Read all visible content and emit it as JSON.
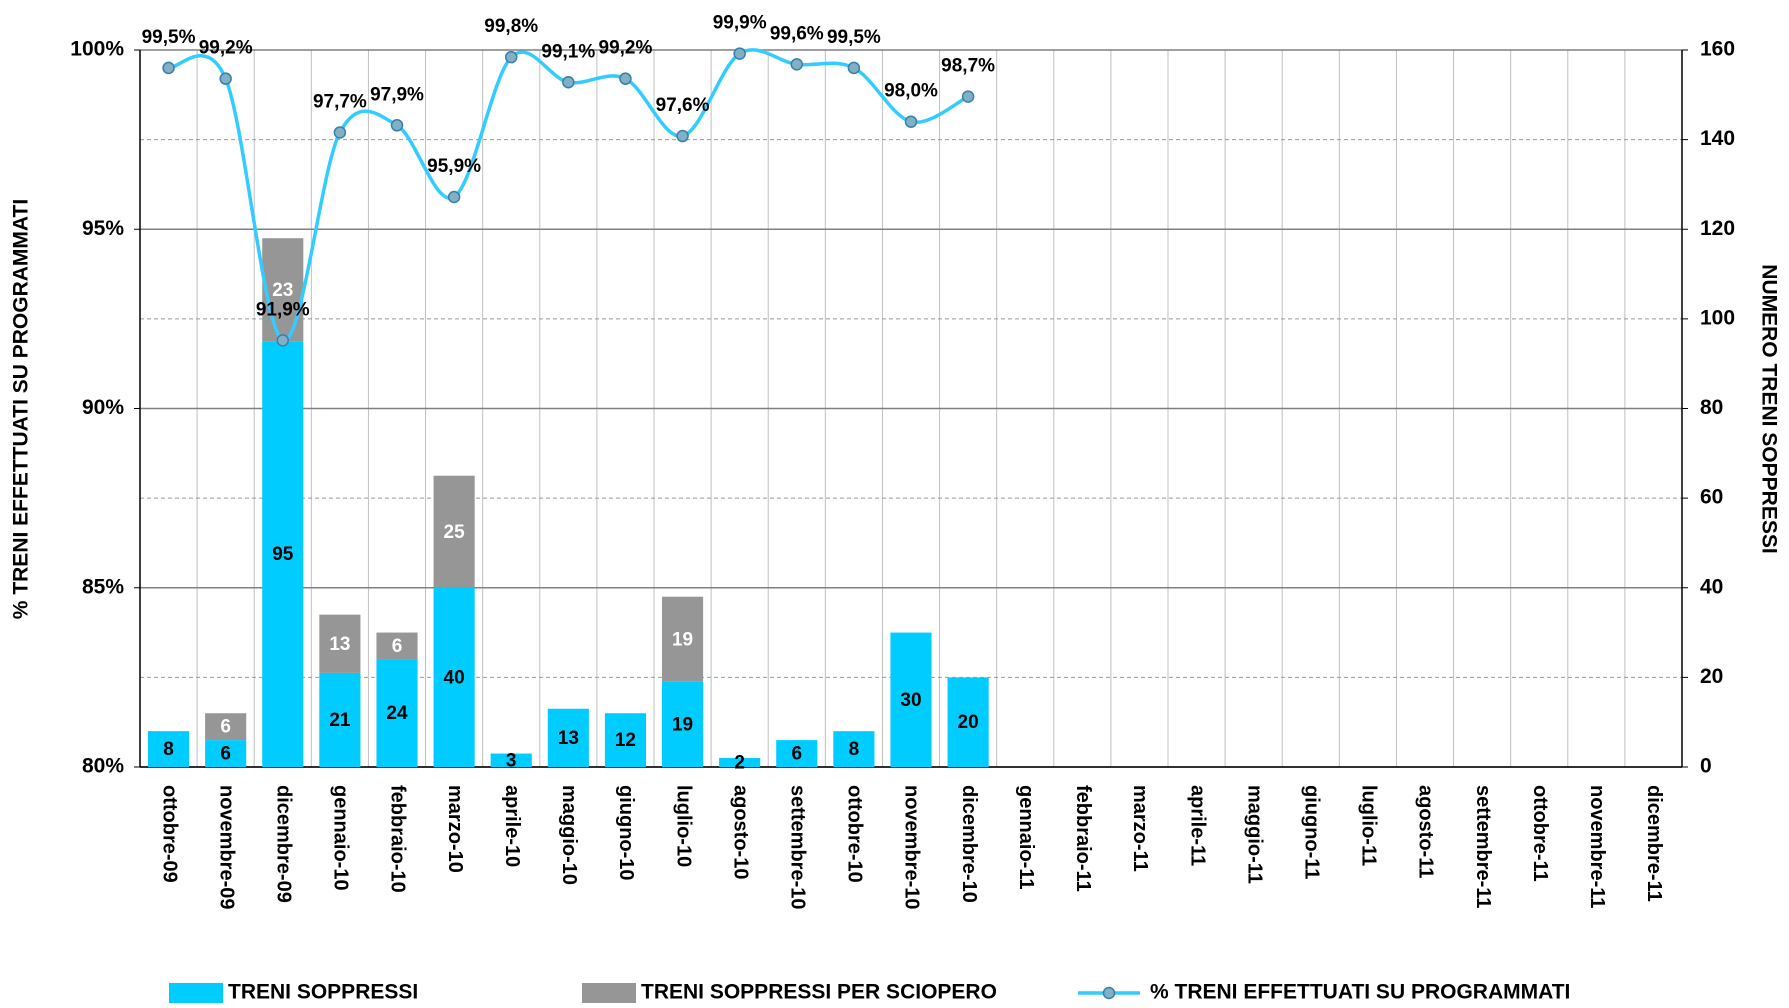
{
  "chart_data": {
    "type": "bar-line",
    "categories": [
      "ottobre-09",
      "novembre-09",
      "dicembre-09",
      "gennaio-10",
      "febbraio-10",
      "marzo-10",
      "aprile-10",
      "maggio-10",
      "giugno-10",
      "luglio-10",
      "agosto-10",
      "settembre-10",
      "ottobre-10",
      "novembre-10",
      "dicembre-10",
      "gennaio-11",
      "febbraio-11",
      "marzo-11",
      "aprile-11",
      "maggio-11",
      "giugno-11",
      "luglio-11",
      "agosto-11",
      "settembre-11",
      "ottobre-11",
      "novembre-11",
      "dicembre-11"
    ],
    "y_label": "% TRENI EFFETTUATI SU PROGRAMMATI",
    "y2_label": "NUMERO TRENI SOPPRESSI",
    "ylim": [
      80,
      100
    ],
    "yticks": [
      {
        "value": 80,
        "label": "80%"
      },
      {
        "value": 85,
        "label": "85%"
      },
      {
        "value": 90,
        "label": "90%"
      },
      {
        "value": 95,
        "label": "95%"
      },
      {
        "value": 100,
        "label": "100%"
      }
    ],
    "y2lim": [
      0,
      160
    ],
    "y2ticks": [
      0,
      20,
      40,
      60,
      80,
      100,
      120,
      140,
      160
    ],
    "grid": true,
    "legend": "bottom",
    "series": [
      {
        "name": "TRENI SOPPRESSI",
        "type": "bar",
        "axis": "y2",
        "color": "#00ccff",
        "values": [
          8,
          6,
          95,
          21,
          24,
          40,
          3,
          13,
          12,
          19,
          2,
          6,
          8,
          30,
          20,
          null,
          null,
          null,
          null,
          null,
          null,
          null,
          null,
          null,
          null,
          null,
          null
        ]
      },
      {
        "name": "TRENI SOPPRESSI PER SCIOPERO",
        "type": "bar",
        "axis": "y2",
        "color": "#969696",
        "values": [
          null,
          6,
          23,
          13,
          6,
          25,
          null,
          null,
          null,
          19,
          null,
          null,
          null,
          null,
          null,
          null,
          null,
          null,
          null,
          null,
          null,
          null,
          null,
          null,
          null,
          null,
          null
        ]
      },
      {
        "name": "% TRENI EFFETTUATI SU PROGRAMMATI",
        "type": "line",
        "color": "#33ccff",
        "marker_color": "#7fb0c6",
        "values": [
          99.5,
          99.2,
          91.9,
          97.7,
          97.9,
          95.9,
          99.8,
          99.1,
          99.2,
          97.6,
          99.9,
          99.6,
          99.5,
          98.0,
          98.7,
          null,
          null,
          null,
          null,
          null,
          null,
          null,
          null,
          null,
          null,
          null,
          null
        ],
        "value_labels": [
          "99,5%",
          "99,2%",
          "91,9%",
          "97,7%",
          "97,9%",
          "95,9%",
          "99,8%",
          "99,1%",
          "99,2%",
          "97,6%",
          "99,9%",
          "99,6%",
          "99,5%",
          "98,0%",
          "98,7%",
          null,
          null,
          null,
          null,
          null,
          null,
          null,
          null,
          null,
          null,
          null,
          null
        ]
      }
    ]
  }
}
